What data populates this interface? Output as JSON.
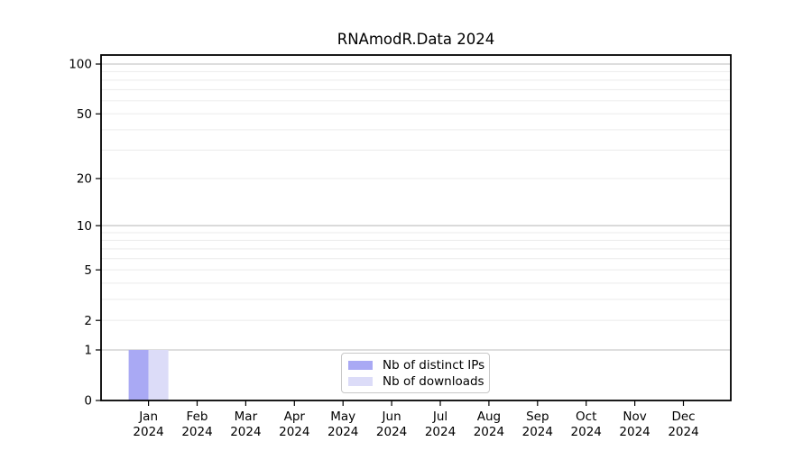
{
  "chart_data": {
    "type": "bar",
    "title": "RNAmodR.Data 2024",
    "xlabel": "",
    "ylabel": "",
    "categories": [
      "Jan",
      "Feb",
      "Mar",
      "Apr",
      "May",
      "Jun",
      "Jul",
      "Aug",
      "Sep",
      "Oct",
      "Nov",
      "Dec"
    ],
    "category_year": "2024",
    "series": [
      {
        "name": "Nb of distinct IPs",
        "values": [
          1,
          0,
          0,
          0,
          0,
          0,
          0,
          0,
          0,
          0,
          0,
          0
        ]
      },
      {
        "name": "Nb of downloads",
        "values": [
          1,
          0,
          0,
          0,
          0,
          0,
          0,
          0,
          0,
          0,
          0,
          0
        ]
      }
    ],
    "y_axis": {
      "scale": "log10(1+x)",
      "tick_values": [
        0,
        1,
        2,
        5,
        10,
        20,
        50,
        100
      ],
      "decade_gridlines": [
        1,
        10,
        100
      ],
      "minor_gridlines": [
        2,
        3,
        4,
        5,
        6,
        7,
        8,
        9,
        20,
        30,
        40,
        50,
        60,
        70,
        80,
        90
      ],
      "ylim": [
        0,
        115
      ],
      "grid": "on"
    },
    "legend": {
      "position": "lower center",
      "entries": [
        "Nb of distinct IPs",
        "Nb of downloads"
      ]
    },
    "colors": {
      "bar_distinct_ips": "#a9a9f4",
      "bar_downloads": "#dcdcf8",
      "grid_decade": "#c9c9c9",
      "grid_minor": "#ededed",
      "axis": "#000000",
      "legend_border": "#c8c8c8",
      "text": "#000000"
    }
  }
}
